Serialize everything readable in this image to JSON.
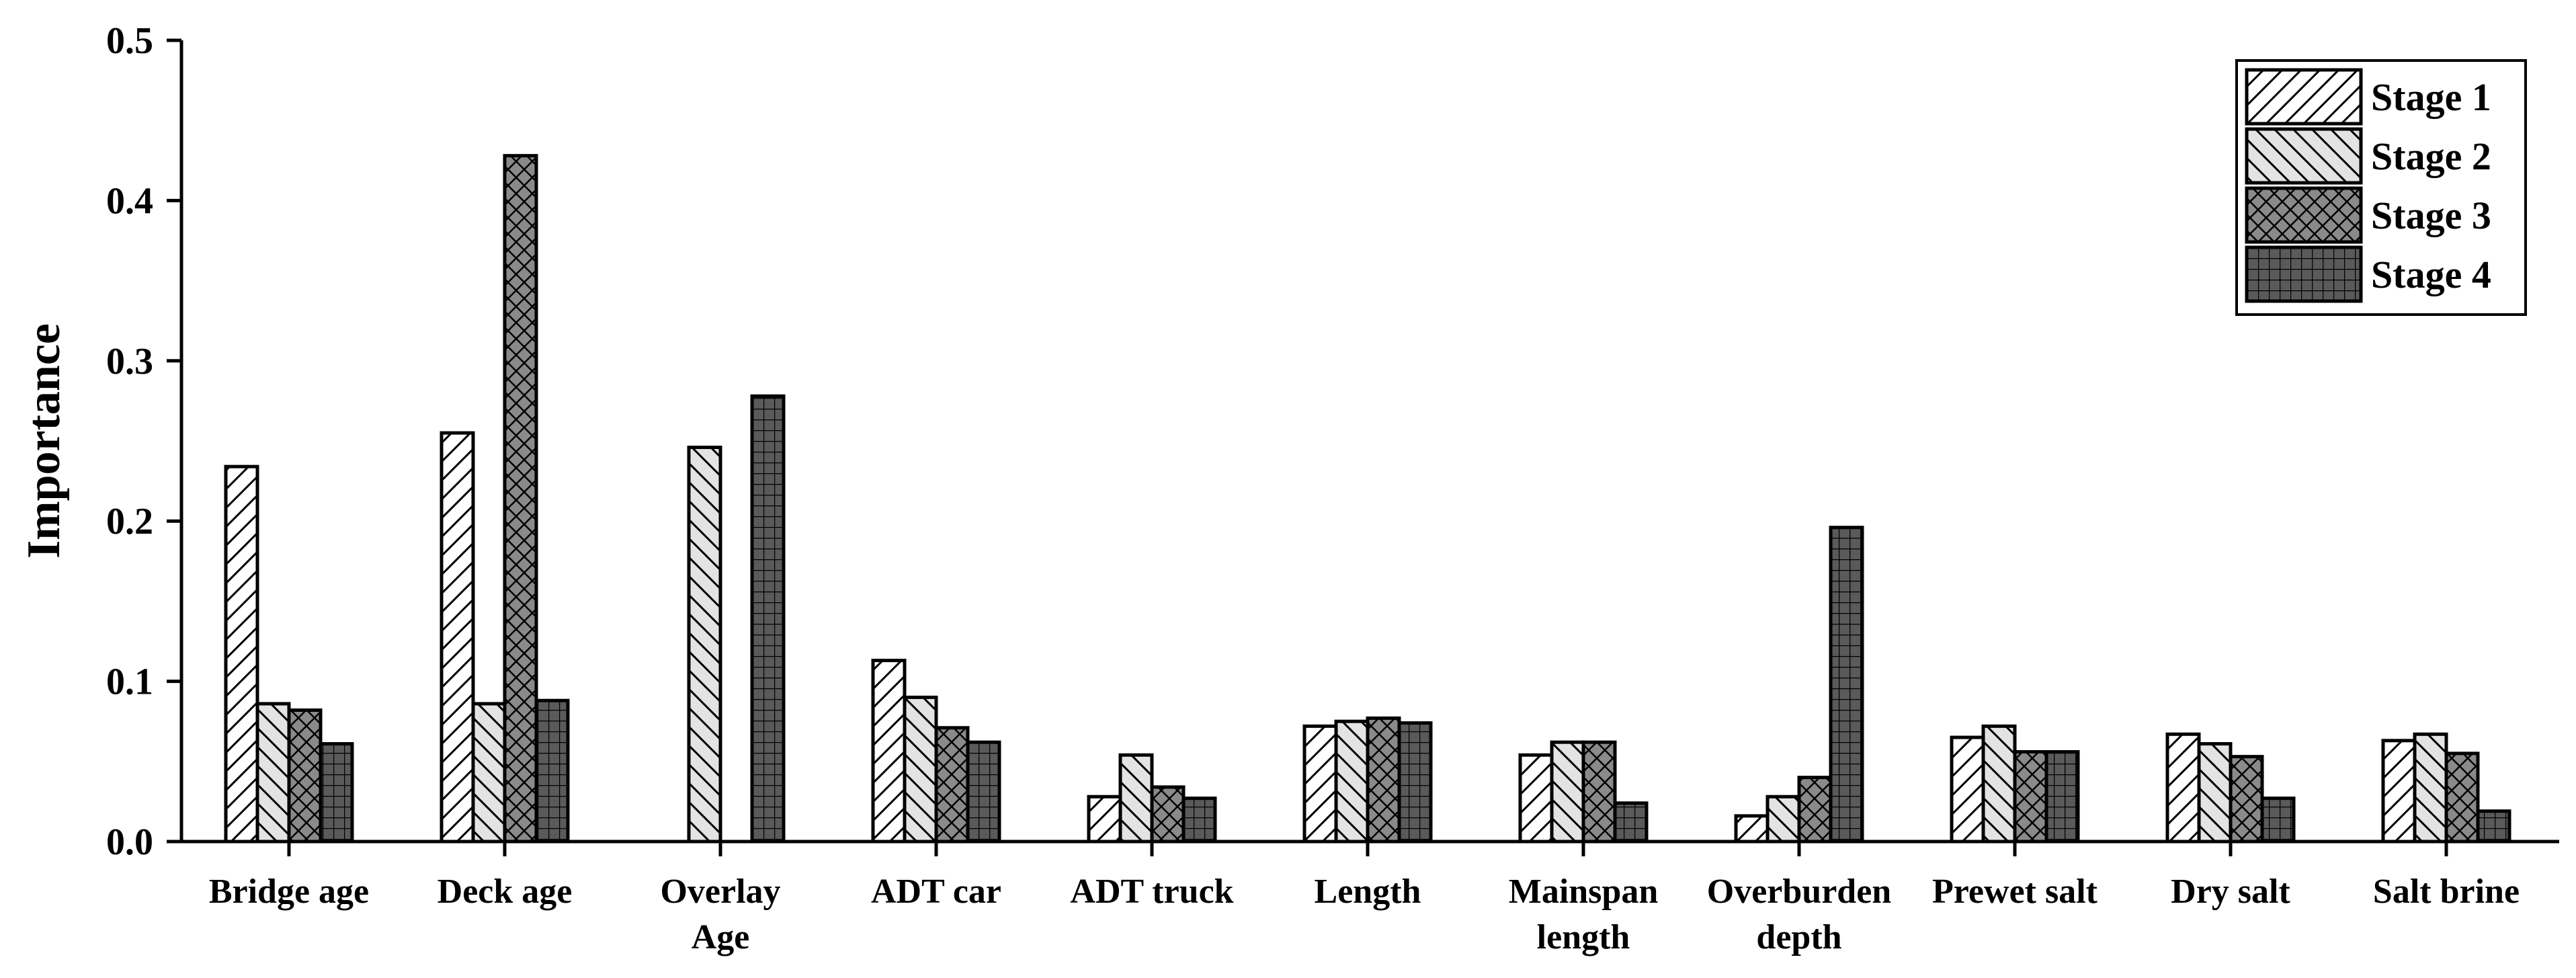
{
  "chart_data": {
    "type": "bar",
    "title": "",
    "xlabel": "",
    "ylabel": "Importance",
    "ylim": [
      0,
      0.5
    ],
    "yticks": [
      "0.0",
      "0.1",
      "0.2",
      "0.3",
      "0.4",
      "0.5"
    ],
    "grid": false,
    "legend_position": "top-right",
    "categories": [
      [
        "Bridge age"
      ],
      [
        "Deck age"
      ],
      [
        "Overlay",
        "Age"
      ],
      [
        "ADT car"
      ],
      [
        "ADT truck"
      ],
      [
        "Length"
      ],
      [
        "Mainspan",
        "length"
      ],
      [
        "Overburden",
        "depth"
      ],
      [
        "Prewet salt"
      ],
      [
        "Dry salt"
      ],
      [
        "Salt brine"
      ]
    ],
    "series": [
      {
        "name": "Stage 1",
        "pattern": "diagonal-forward",
        "fill": "#ffffff",
        "values": [
          0.234,
          0.255,
          0.0,
          0.113,
          0.028,
          0.072,
          0.054,
          0.016,
          0.065,
          0.067,
          0.063
        ]
      },
      {
        "name": "Stage 2",
        "pattern": "diagonal-backward",
        "fill": "#e3e3e3",
        "values": [
          0.086,
          0.086,
          0.246,
          0.09,
          0.054,
          0.075,
          0.062,
          0.028,
          0.072,
          0.061,
          0.067
        ]
      },
      {
        "name": "Stage 3",
        "pattern": "cross-hatch",
        "fill": "#8a8a8a",
        "values": [
          0.082,
          0.428,
          0.0,
          0.071,
          0.034,
          0.077,
          0.062,
          0.04,
          0.056,
          0.053,
          0.055
        ]
      },
      {
        "name": "Stage 4",
        "pattern": "grid",
        "fill": "#5a5a5a",
        "values": [
          0.061,
          0.088,
          0.278,
          0.062,
          0.027,
          0.074,
          0.024,
          0.196,
          0.056,
          0.027,
          0.019
        ]
      }
    ]
  }
}
